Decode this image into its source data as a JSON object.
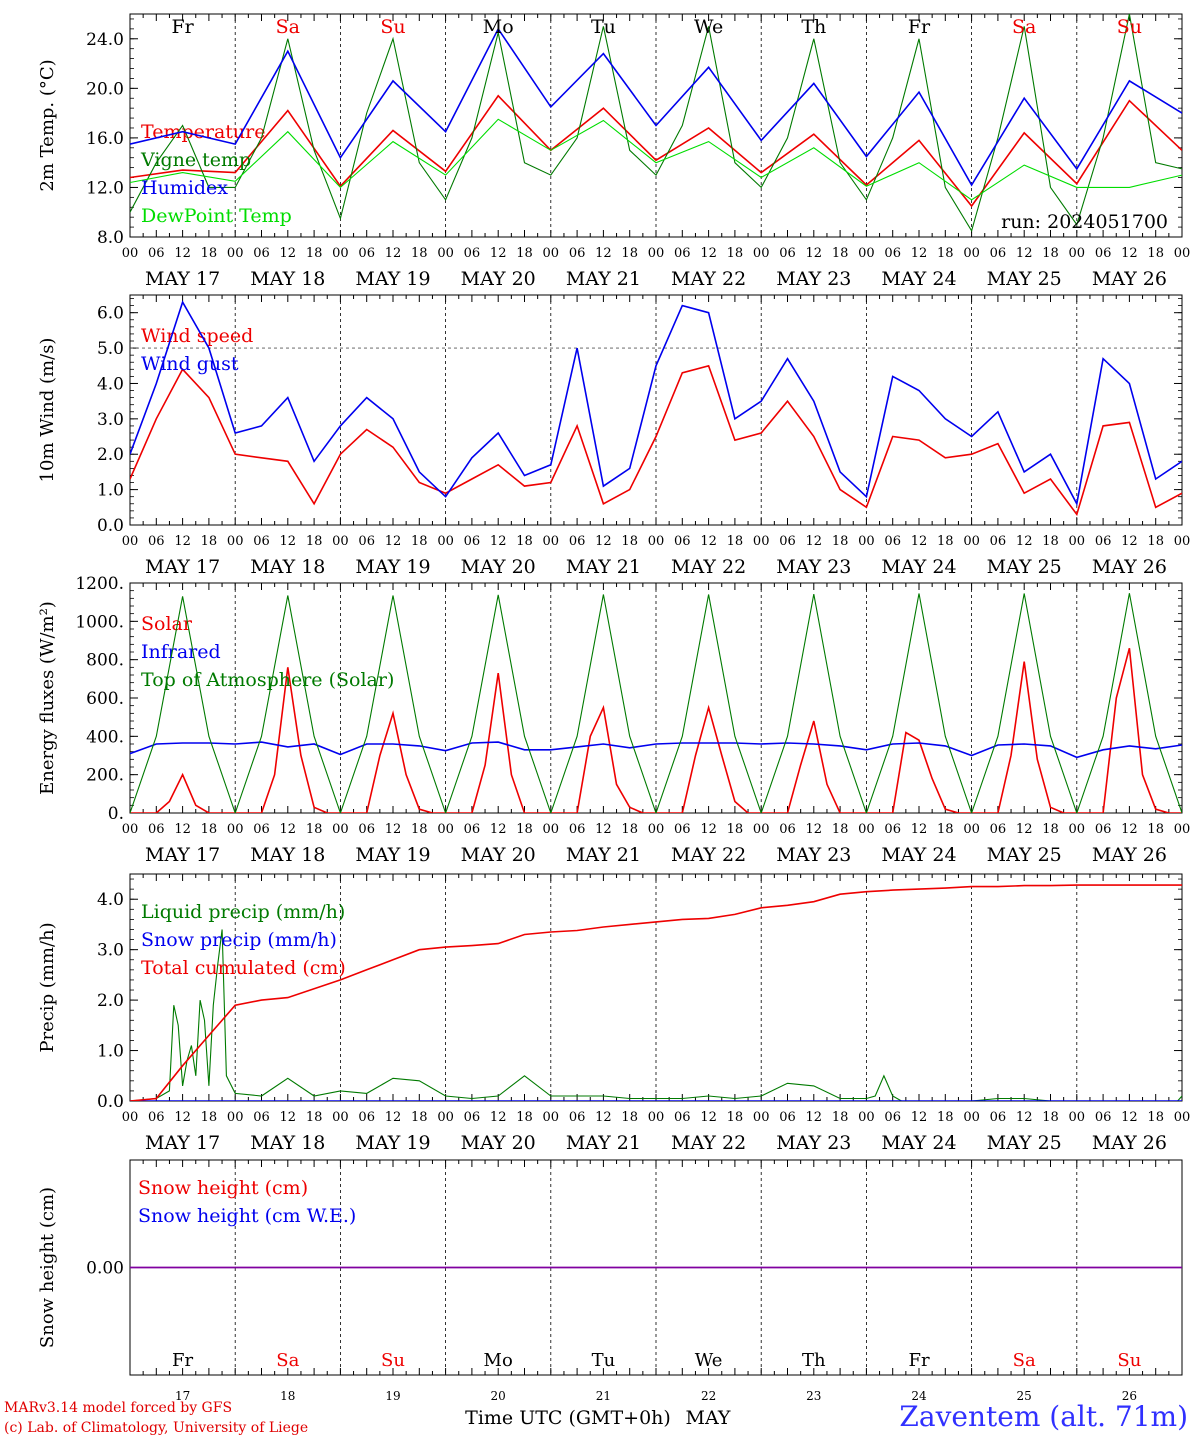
{
  "meta": {
    "run_label": "run: 2024051700",
    "credit_line1": "MARv3.14 model forced by GFS",
    "credit_line2": "(c) Lab. of Climatology, University of Liege",
    "station": "Zaventem (alt. 71m)",
    "x_title": "Time UTC (GMT+0h)",
    "x_month": "MAY"
  },
  "colors": {
    "red": "#ee0000",
    "green": "#007a00",
    "blue": "#0000ee",
    "lightgreen": "#00dd00",
    "purple": "#8000a0",
    "black": "#000000"
  },
  "days": [
    {
      "abbr": "Fr",
      "date": "MAY 17",
      "num": "17",
      "weekend": false
    },
    {
      "abbr": "Sa",
      "date": "MAY 18",
      "num": "18",
      "weekend": true
    },
    {
      "abbr": "Su",
      "date": "MAY 19",
      "num": "19",
      "weekend": true
    },
    {
      "abbr": "Mo",
      "date": "MAY 20",
      "num": "20",
      "weekend": false
    },
    {
      "abbr": "Tu",
      "date": "MAY 21",
      "num": "21",
      "weekend": false
    },
    {
      "abbr": "We",
      "date": "MAY 22",
      "num": "22",
      "weekend": false
    },
    {
      "abbr": "Th",
      "date": "MAY 23",
      "num": "23",
      "weekend": false
    },
    {
      "abbr": "Fr",
      "date": "MAY 24",
      "num": "24",
      "weekend": false
    },
    {
      "abbr": "Sa",
      "date": "MAY 25",
      "num": "25",
      "weekend": true
    },
    {
      "abbr": "Su",
      "date": "MAY 26",
      "num": "26",
      "weekend": true
    }
  ],
  "hour_labels": [
    "00",
    "06",
    "12",
    "18"
  ],
  "chart_data": [
    {
      "type": "line",
      "ylabel": "2m Temp. (°C)",
      "ylim": [
        8,
        26
      ],
      "yticks": [
        "8.0",
        "12.0",
        "16.0",
        "20.0",
        "24.0"
      ],
      "series": [
        {
          "name": "Temperature",
          "color": "red",
          "x": [
            0,
            12,
            24,
            36,
            48,
            60,
            72,
            84,
            96,
            108,
            120,
            132,
            144,
            156,
            168,
            180,
            192,
            204,
            216,
            228,
            240
          ],
          "y": [
            12.8,
            13.4,
            13.2,
            18.2,
            12.1,
            16.6,
            13.3,
            19.4,
            15.0,
            18.4,
            14.2,
            16.8,
            13.2,
            16.3,
            12.2,
            15.8,
            10.5,
            16.4,
            12.3,
            19.0,
            15.0
          ]
        },
        {
          "name": "Vigne temp",
          "color": "green",
          "x": [
            0,
            6,
            12,
            18,
            24,
            30,
            36,
            42,
            48,
            54,
            60,
            66,
            72,
            78,
            84,
            90,
            96,
            102,
            108,
            114,
            120,
            126,
            132,
            138,
            144,
            150,
            156,
            162,
            168,
            174,
            180,
            186,
            192,
            198,
            204,
            210,
            216,
            222,
            228,
            234,
            240
          ],
          "y": [
            10,
            14,
            17,
            12,
            12,
            16,
            24,
            15,
            9.5,
            18,
            24,
            14,
            11,
            16,
            24.5,
            14,
            13,
            16,
            25,
            15,
            13,
            17,
            25,
            14,
            12,
            16,
            24,
            14,
            11,
            16,
            24,
            12,
            8.5,
            16,
            25,
            12,
            9,
            16,
            26,
            14,
            13.5
          ]
        },
        {
          "name": "Humidex",
          "color": "blue",
          "x": [
            0,
            12,
            24,
            36,
            48,
            60,
            72,
            84,
            96,
            108,
            120,
            132,
            144,
            156,
            168,
            180,
            192,
            204,
            216,
            228,
            240
          ],
          "y": [
            15.5,
            16.5,
            15.5,
            23.0,
            14.4,
            20.6,
            16.5,
            24.8,
            18.5,
            22.8,
            17.0,
            21.7,
            15.8,
            20.4,
            14.5,
            19.7,
            12.2,
            19.2,
            13.5,
            20.6,
            18.0
          ]
        },
        {
          "name": "DewPoint Temp",
          "color": "lightgreen",
          "x": [
            0,
            12,
            24,
            36,
            48,
            60,
            72,
            84,
            96,
            108,
            120,
            132,
            144,
            156,
            168,
            180,
            192,
            204,
            216,
            228,
            240
          ],
          "y": [
            12.4,
            13.2,
            12.5,
            16.5,
            12.0,
            15.7,
            13.0,
            17.5,
            15.0,
            17.4,
            14.0,
            15.7,
            12.8,
            15.2,
            12.1,
            14.0,
            11.0,
            13.8,
            12.0,
            12.0,
            13.0
          ]
        }
      ]
    },
    {
      "type": "line",
      "ylabel": "10m Wind (m/s)",
      "ylim": [
        0,
        6.5
      ],
      "yticks": [
        "0.0",
        "1.0",
        "2.0",
        "3.0",
        "4.0",
        "5.0",
        "6.0"
      ],
      "dashed_line": 5.0,
      "series": [
        {
          "name": "Wind speed",
          "color": "red",
          "x": [
            0,
            6,
            12,
            18,
            24,
            30,
            36,
            42,
            48,
            54,
            60,
            66,
            72,
            78,
            84,
            90,
            96,
            102,
            108,
            114,
            120,
            126,
            132,
            138,
            144,
            150,
            156,
            162,
            168,
            174,
            180,
            186,
            192,
            198,
            204,
            210,
            216,
            222,
            228,
            234,
            240
          ],
          "y": [
            1.3,
            3.0,
            4.4,
            3.6,
            2.0,
            1.9,
            1.8,
            0.6,
            2.0,
            2.7,
            2.2,
            1.2,
            0.9,
            1.3,
            1.7,
            1.1,
            1.2,
            2.8,
            0.6,
            1.0,
            2.5,
            4.3,
            4.5,
            2.4,
            2.6,
            3.5,
            2.5,
            1.0,
            0.5,
            2.5,
            2.4,
            1.9,
            2.0,
            2.3,
            0.9,
            1.3,
            0.3,
            2.8,
            2.9,
            0.5,
            0.9
          ]
        },
        {
          "name": "Wind gust",
          "color": "blue",
          "x": [
            0,
            6,
            12,
            18,
            24,
            30,
            36,
            42,
            48,
            54,
            60,
            66,
            72,
            78,
            84,
            90,
            96,
            102,
            108,
            114,
            120,
            126,
            132,
            138,
            144,
            150,
            156,
            162,
            168,
            174,
            180,
            186,
            192,
            198,
            204,
            210,
            216,
            222,
            228,
            234,
            240
          ],
          "y": [
            2.0,
            4.0,
            6.3,
            5.0,
            2.6,
            2.8,
            3.6,
            1.8,
            2.8,
            3.6,
            3.0,
            1.5,
            0.8,
            1.9,
            2.6,
            1.4,
            1.7,
            5.0,
            1.1,
            1.6,
            4.5,
            6.2,
            6.0,
            3.0,
            3.5,
            4.7,
            3.5,
            1.5,
            0.8,
            4.2,
            3.8,
            3.0,
            2.5,
            3.2,
            1.5,
            2.0,
            0.6,
            4.7,
            4.0,
            1.3,
            1.8
          ]
        }
      ]
    },
    {
      "type": "line",
      "ylabel": "Energy fluxes (W/m²)",
      "ylim": [
        0,
        1200
      ],
      "yticks": [
        "0.",
        "200.",
        "400.",
        "600.",
        "800.",
        "1000.",
        "1200."
      ],
      "series": [
        {
          "name": "Solar",
          "color": "red",
          "x": [
            0,
            6,
            9,
            12,
            15,
            18,
            21,
            24,
            30,
            33,
            36,
            39,
            42,
            45,
            48,
            54,
            57,
            60,
            63,
            66,
            69,
            72,
            78,
            81,
            84,
            87,
            90,
            93,
            96,
            102,
            105,
            108,
            111,
            114,
            117,
            120,
            126,
            129,
            132,
            135,
            138,
            141,
            144,
            150,
            153,
            156,
            159,
            162,
            165,
            168,
            174,
            177,
            180,
            183,
            186,
            189,
            192,
            198,
            201,
            204,
            207,
            210,
            213,
            216,
            222,
            225,
            228,
            231,
            234,
            237,
            240
          ],
          "y": [
            0,
            0,
            60,
            200,
            40,
            0,
            0,
            0,
            0,
            200,
            760,
            300,
            30,
            0,
            0,
            0,
            300,
            520,
            200,
            20,
            0,
            0,
            0,
            250,
            730,
            200,
            0,
            0,
            0,
            0,
            400,
            550,
            150,
            30,
            0,
            0,
            0,
            300,
            550,
            300,
            60,
            0,
            0,
            0,
            250,
            480,
            150,
            0,
            0,
            0,
            0,
            420,
            380,
            180,
            20,
            0,
            0,
            0,
            300,
            790,
            280,
            30,
            0,
            0,
            0,
            600,
            860,
            200,
            20,
            0,
            0
          ]
        },
        {
          "name": "Infrared",
          "color": "blue",
          "x": [
            0,
            6,
            12,
            18,
            24,
            30,
            36,
            42,
            48,
            54,
            60,
            66,
            72,
            78,
            84,
            90,
            96,
            102,
            108,
            114,
            120,
            126,
            132,
            138,
            144,
            150,
            156,
            162,
            168,
            174,
            180,
            186,
            192,
            198,
            204,
            210,
            216,
            222,
            228,
            234,
            240
          ],
          "y": [
            310,
            360,
            365,
            365,
            360,
            370,
            345,
            360,
            305,
            360,
            360,
            350,
            325,
            365,
            370,
            330,
            330,
            345,
            360,
            340,
            360,
            365,
            365,
            365,
            360,
            365,
            360,
            350,
            330,
            360,
            365,
            350,
            300,
            355,
            360,
            350,
            290,
            330,
            350,
            335,
            355
          ]
        },
        {
          "name": "Top of Atmosphere (Solar)",
          "color": "green",
          "x": [
            0,
            6,
            12,
            18,
            24,
            30,
            36,
            42,
            48,
            54,
            60,
            66,
            72,
            78,
            84,
            90,
            96,
            102,
            108,
            114,
            120,
            126,
            132,
            138,
            144,
            150,
            156,
            162,
            168,
            174,
            180,
            186,
            192,
            198,
            204,
            210,
            216,
            222,
            228,
            234,
            240
          ],
          "y": [
            0,
            400,
            1130,
            400,
            0,
            400,
            1135,
            400,
            0,
            400,
            1135,
            400,
            0,
            400,
            1138,
            400,
            0,
            400,
            1140,
            400,
            0,
            400,
            1140,
            400,
            0,
            400,
            1142,
            400,
            0,
            400,
            1145,
            400,
            0,
            400,
            1145,
            400,
            0,
            400,
            1147,
            400,
            0
          ]
        }
      ]
    },
    {
      "type": "line",
      "ylabel": "Precip (mm/h)",
      "ylim": [
        0,
        4.5
      ],
      "yticks": [
        "0.0",
        "1.0",
        "2.0",
        "3.0",
        "4.0"
      ],
      "series": [
        {
          "name": "Liquid precip (mm/h)",
          "color": "green",
          "x": [
            0,
            6,
            9,
            10,
            11,
            12,
            13,
            14,
            15,
            16,
            17,
            18,
            19,
            20,
            21,
            22,
            24,
            30,
            36,
            42,
            48,
            54,
            60,
            66,
            72,
            78,
            84,
            90,
            96,
            102,
            108,
            114,
            120,
            126,
            132,
            138,
            144,
            150,
            156,
            162,
            168,
            170,
            172,
            174,
            176,
            180,
            186,
            192,
            198,
            204,
            210,
            216,
            222,
            228,
            234,
            239,
            240
          ],
          "y": [
            0,
            0.05,
            0.2,
            1.9,
            1.5,
            0.3,
            0.8,
            1.1,
            0.5,
            2.0,
            1.6,
            0.3,
            1.9,
            2.7,
            3.4,
            0.5,
            0.15,
            0.1,
            0.45,
            0.1,
            0.2,
            0.15,
            0.45,
            0.4,
            0.1,
            0.05,
            0.1,
            0.5,
            0.1,
            0.1,
            0.1,
            0.05,
            0.05,
            0.05,
            0.1,
            0.05,
            0.1,
            0.35,
            0.3,
            0.05,
            0.05,
            0.1,
            0.5,
            0.1,
            0.0,
            0.0,
            0.0,
            0.0,
            0.05,
            0.05,
            0.0,
            0.0,
            0.0,
            0.0,
            0.0,
            0.0,
            0.1
          ]
        },
        {
          "name": "Snow precip (mm/h)",
          "color": "blue",
          "x": [
            0,
            240
          ],
          "y": [
            0,
            0
          ]
        },
        {
          "name": "Total cumulated (cm)",
          "color": "red",
          "x": [
            0,
            6,
            12,
            18,
            24,
            30,
            36,
            48,
            54,
            60,
            66,
            72,
            78,
            84,
            90,
            96,
            102,
            108,
            114,
            120,
            126,
            132,
            138,
            144,
            150,
            156,
            162,
            168,
            174,
            180,
            186,
            192,
            198,
            204,
            210,
            216,
            222,
            228,
            234,
            240
          ],
          "y": [
            0,
            0.05,
            0.7,
            1.3,
            1.9,
            2.0,
            2.05,
            2.4,
            2.6,
            2.8,
            3.0,
            3.05,
            3.08,
            3.12,
            3.3,
            3.35,
            3.38,
            3.45,
            3.5,
            3.55,
            3.6,
            3.62,
            3.7,
            3.83,
            3.88,
            3.95,
            4.1,
            4.15,
            4.18,
            4.2,
            4.22,
            4.25,
            4.25,
            4.27,
            4.27,
            4.28,
            4.28,
            4.28,
            4.28,
            4.28
          ]
        }
      ]
    },
    {
      "type": "line",
      "ylabel": "Snow height (cm)",
      "ylim": [
        -1,
        1
      ],
      "yticks": [
        "0.00"
      ],
      "series": [
        {
          "name": "Snow height (cm)",
          "color": "red",
          "x": [
            0,
            240
          ],
          "y": [
            0,
            0
          ]
        },
        {
          "name": "Snow height (cm W.E.)",
          "color": "blue",
          "x": [
            0,
            240
          ],
          "y": [
            0,
            0
          ]
        }
      ]
    }
  ]
}
